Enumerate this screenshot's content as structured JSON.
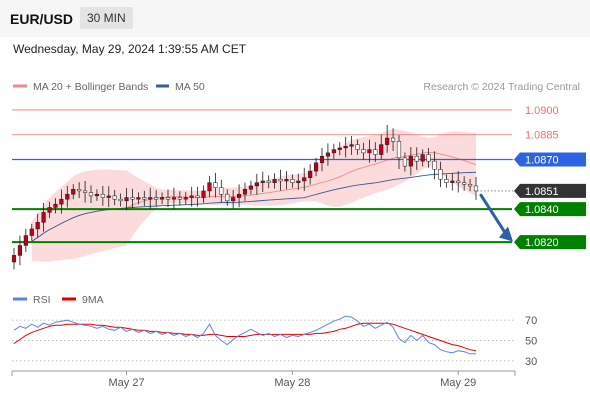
{
  "header": {
    "symbol": "EUR/USD",
    "timeframe": "30 MIN",
    "datetime": "Wednesday, May 29, 2024 1:39:55 AM CET"
  },
  "colors": {
    "candle": "#c0001a",
    "bollinger_fill": "#fbd5d6",
    "bollinger_line": "#f08a8a",
    "ma50": "#3a5b96",
    "resistance": "#ec7070",
    "pivot": "#2d63e0",
    "support": "#008000",
    "current_label": "#333333",
    "arrow": "#2b5fa8",
    "rsi": "#5d86d8",
    "rsi_ma": "#e00000"
  },
  "chart_data": [
    {
      "type": "candlestick",
      "title": "",
      "legend": {
        "placement": "top-left",
        "items": [
          {
            "label": "MA 20 + Bollinger Bands",
            "color": "#f08a8a"
          },
          {
            "label": "MA 50",
            "color": "#3a5b96"
          }
        ]
      },
      "watermark": "Research © 2024 Trading Central",
      "ylim": [
        1.0808,
        1.0906
      ],
      "current_price": 1.0851,
      "levels": [
        {
          "label": "1.0900",
          "value": 1.09,
          "kind": "resistance"
        },
        {
          "label": "1.0885",
          "value": 1.0885,
          "kind": "resistance"
        },
        {
          "label": "1.0870",
          "value": 1.087,
          "kind": "pivot"
        },
        {
          "label": "1.0851",
          "value": 1.0851,
          "kind": "current"
        },
        {
          "label": "1.0840",
          "value": 1.084,
          "kind": "support"
        },
        {
          "label": "1.0820",
          "value": 1.082,
          "kind": "support"
        }
      ],
      "x_ticks": [
        {
          "label": "May 27",
          "index": 19
        },
        {
          "label": "May 28",
          "index": 47
        },
        {
          "label": "May 29",
          "index": 75
        }
      ],
      "forecast_arrow": {
        "from": 1.0849,
        "to": 1.0821
      },
      "closes": [
        1.0812,
        1.0818,
        1.0824,
        1.0828,
        1.0832,
        1.0838,
        1.0841,
        1.0843,
        1.0846,
        1.0849,
        1.0852,
        1.0851,
        1.085,
        1.0848,
        1.0849,
        1.0847,
        1.0848,
        1.0846,
        1.0845,
        1.0847,
        1.0846,
        1.0847,
        1.0846,
        1.0847,
        1.0846,
        1.0847,
        1.0846,
        1.0847,
        1.0846,
        1.0847,
        1.0848,
        1.0847,
        1.0851,
        1.0856,
        1.0853,
        1.0849,
        1.0845,
        1.0847,
        1.0849,
        1.0852,
        1.0854,
        1.0856,
        1.0857,
        1.0856,
        1.0858,
        1.0857,
        1.0858,
        1.0856,
        1.0857,
        1.0859,
        1.0863,
        1.0868,
        1.0872,
        1.0874,
        1.0876,
        1.0877,
        1.0878,
        1.0879,
        1.0876,
        1.0874,
        1.0876,
        1.0873,
        1.0879,
        1.0883,
        1.0881,
        1.0871,
        1.0866,
        1.0872,
        1.0869,
        1.0873,
        1.0869,
        1.0864,
        1.0858,
        1.0856,
        1.0857,
        1.0856,
        1.0855,
        1.0854,
        1.0851
      ]
    },
    {
      "type": "line",
      "title": "",
      "legend": {
        "placement": "top-left",
        "items": [
          {
            "label": "RSI",
            "color": "#5d86d8"
          },
          {
            "label": "9MA",
            "color": "#e00000"
          }
        ]
      },
      "ylim": [
        25,
        78
      ],
      "y_ticks": [
        {
          "label": "70",
          "value": 70
        },
        {
          "label": "50",
          "value": 50
        },
        {
          "label": "30",
          "value": 30
        }
      ],
      "series": [
        {
          "name": "RSI",
          "values": [
            60,
            64,
            62,
            66,
            63,
            67,
            65,
            68,
            69,
            70,
            68,
            66,
            65,
            64,
            62,
            64,
            61,
            60,
            63,
            59,
            61,
            58,
            60,
            57,
            59,
            56,
            58,
            55,
            57,
            54,
            56,
            53,
            57,
            66,
            55,
            50,
            46,
            51,
            55,
            58,
            61,
            58,
            55,
            57,
            54,
            56,
            53,
            55,
            54,
            56,
            58,
            60,
            63,
            66,
            69,
            71,
            74,
            73,
            69,
            64,
            66,
            62,
            65,
            68,
            63,
            52,
            48,
            55,
            50,
            55,
            48,
            46,
            41,
            39,
            38,
            40,
            39,
            37,
            37
          ]
        },
        {
          "name": "9MA",
          "values": [
            47,
            51,
            55,
            58,
            60,
            62,
            64,
            65,
            65,
            66,
            66,
            66,
            66,
            66,
            65,
            65,
            64,
            63,
            63,
            62,
            61,
            60,
            60,
            59,
            59,
            58,
            58,
            57,
            57,
            56,
            56,
            55,
            55,
            56,
            56,
            55,
            54,
            54,
            54,
            54,
            55,
            56,
            56,
            56,
            56,
            56,
            56,
            56,
            56,
            56,
            56,
            57,
            57,
            58,
            59,
            61,
            62,
            64,
            66,
            67,
            67,
            67,
            67,
            67,
            66,
            64,
            62,
            60,
            58,
            56,
            54,
            52,
            50,
            48,
            46,
            45,
            43,
            41,
            40
          ]
        }
      ]
    }
  ]
}
